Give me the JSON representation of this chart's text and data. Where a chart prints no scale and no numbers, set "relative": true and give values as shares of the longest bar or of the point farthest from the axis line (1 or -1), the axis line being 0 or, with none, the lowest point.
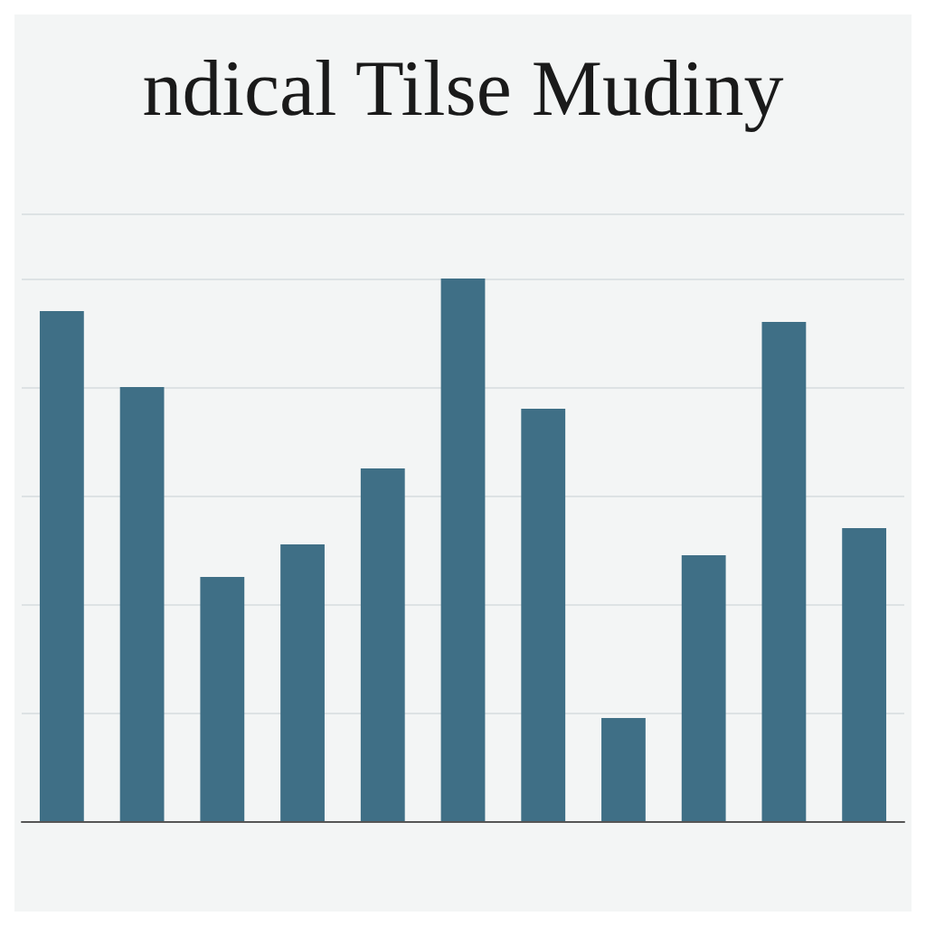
{
  "chart_data": {
    "type": "bar",
    "title": "ndical Tilse Mudiny",
    "relative": true,
    "grid": "y",
    "categories": [
      null,
      null,
      null,
      null,
      null,
      null,
      null,
      null,
      null,
      null,
      null
    ],
    "values": [
      0.94,
      0.8,
      0.45,
      0.51,
      0.65,
      1,
      0.76,
      0.19,
      0.49,
      0.92,
      0.54
    ],
    "color": "#3f6f86"
  }
}
